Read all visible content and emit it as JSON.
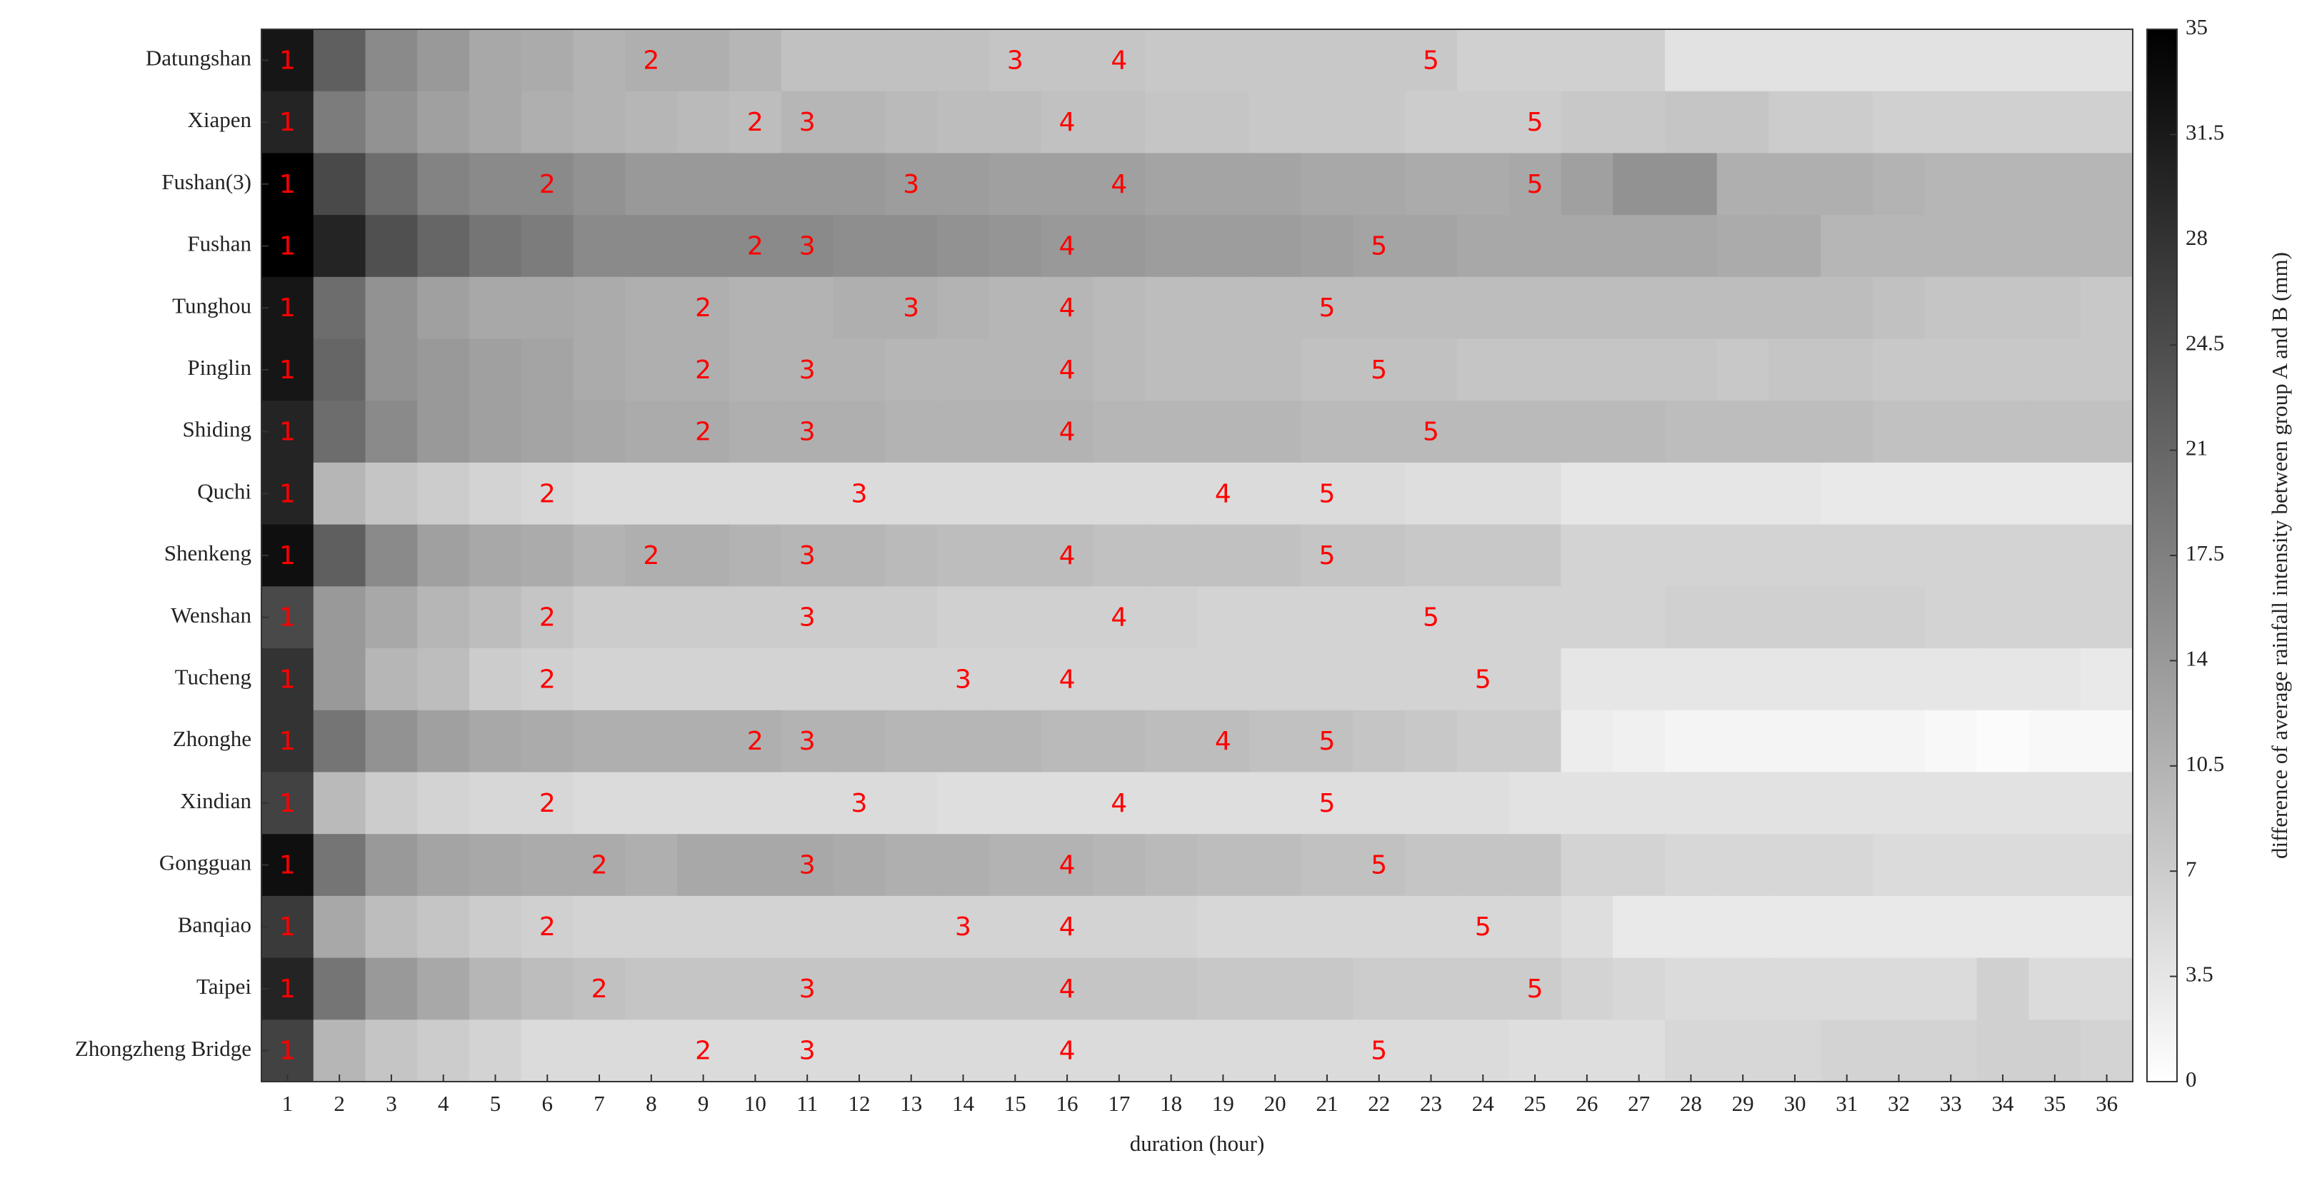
{
  "chart_data": {
    "type": "heatmap",
    "x_label": "duration (hour)",
    "colorbar_label": "difference of average rainfall intensity between group A and B (mm)",
    "x": [
      1,
      2,
      3,
      4,
      5,
      6,
      7,
      8,
      9,
      10,
      11,
      12,
      13,
      14,
      15,
      16,
      17,
      18,
      19,
      20,
      21,
      22,
      23,
      24,
      25,
      26,
      27,
      28,
      29,
      30,
      31,
      32,
      33,
      34,
      35,
      36
    ],
    "zlim": [
      0,
      35
    ],
    "zticks": [
      0,
      3.5,
      7,
      10.5,
      14,
      17.5,
      21,
      24.5,
      28,
      31.5,
      35
    ],
    "colormap": [
      "#ffffff",
      "#000000"
    ],
    "annotation_color": "#ff0000",
    "rows": [
      {
        "name": "Datungshan",
        "values": [
          32,
          22,
          16,
          14,
          12,
          11.5,
          10.5,
          11,
          11,
          10,
          8.5,
          8.5,
          8.5,
          8.5,
          8,
          8,
          8,
          7.5,
          7.5,
          7.5,
          7.5,
          7.5,
          7.5,
          6.5,
          6.5,
          6.5,
          6.5,
          4,
          4,
          4,
          4,
          4,
          4,
          4,
          4,
          4
        ],
        "labels": [
          {
            "x": 1,
            "text": "1"
          },
          {
            "x": 8,
            "text": "2"
          },
          {
            "x": 15,
            "text": "3"
          },
          {
            "x": 17,
            "text": "4"
          },
          {
            "x": 23,
            "text": "5"
          }
        ]
      },
      {
        "name": "Xiapen",
        "values": [
          30,
          18,
          15,
          13,
          12,
          11,
          10.5,
          10,
          9.5,
          9,
          10,
          10,
          9.5,
          9,
          9,
          8.5,
          8.5,
          8,
          8,
          7.5,
          7.5,
          7.5,
          7,
          7,
          7,
          7.5,
          7.5,
          8,
          8,
          7,
          7,
          6.5,
          6.5,
          6.5,
          6.5,
          6.5
        ],
        "labels": [
          {
            "x": 1,
            "text": "1"
          },
          {
            "x": 10,
            "text": "2"
          },
          {
            "x": 11,
            "text": "3"
          },
          {
            "x": 16,
            "text": "4"
          },
          {
            "x": 25,
            "text": "5"
          }
        ]
      },
      {
        "name": "Fushan(3)",
        "values": [
          35,
          25,
          20,
          17,
          16,
          16,
          15,
          14,
          14,
          14,
          14,
          14,
          13.5,
          13.5,
          13,
          13,
          13,
          12.5,
          12.5,
          12.5,
          12,
          12,
          11.5,
          11.5,
          12,
          13,
          15,
          15,
          11,
          11,
          11,
          10.5,
          10,
          10,
          10,
          10
        ],
        "labels": [
          {
            "x": 1,
            "text": "1"
          },
          {
            "x": 6,
            "text": "2"
          },
          {
            "x": 13,
            "text": "3"
          },
          {
            "x": 17,
            "text": "4"
          },
          {
            "x": 25,
            "text": "5"
          }
        ]
      },
      {
        "name": "Fushan",
        "values": [
          35,
          30,
          24,
          21,
          19,
          18,
          16,
          16,
          16,
          16,
          16,
          15.5,
          15.5,
          15,
          14.5,
          14,
          14,
          13.5,
          13.5,
          13.5,
          13,
          12.5,
          12.5,
          12,
          12,
          12,
          12,
          12,
          11.5,
          11.5,
          10,
          10,
          10,
          10,
          10,
          10
        ],
        "labels": [
          {
            "x": 1,
            "text": "1"
          },
          {
            "x": 10,
            "text": "2"
          },
          {
            "x": 11,
            "text": "3"
          },
          {
            "x": 16,
            "text": "4"
          },
          {
            "x": 22,
            "text": "5"
          }
        ]
      },
      {
        "name": "Tunghou",
        "values": [
          32,
          20,
          15,
          13,
          12,
          12,
          11.5,
          11,
          11,
          10.5,
          10.5,
          11,
          11,
          10.5,
          10,
          10,
          9.5,
          9,
          9,
          9,
          9,
          9,
          9,
          9,
          9,
          9,
          9,
          9,
          9,
          9,
          9,
          8.5,
          8,
          8,
          8,
          7.5
        ],
        "labels": [
          {
            "x": 1,
            "text": "1"
          },
          {
            "x": 9,
            "text": "2"
          },
          {
            "x": 13,
            "text": "3"
          },
          {
            "x": 16,
            "text": "4"
          },
          {
            "x": 21,
            "text": "5"
          }
        ]
      },
      {
        "name": "Pinglin",
        "values": [
          32,
          21,
          15,
          14,
          13,
          12.5,
          11.5,
          11,
          11,
          10.5,
          10.5,
          10.5,
          10,
          10,
          10,
          10,
          9.5,
          9,
          9,
          9,
          8.5,
          8.5,
          8.5,
          8,
          8,
          8,
          8,
          8,
          7.5,
          8,
          8,
          7.5,
          7.5,
          7.5,
          7.5,
          7.5
        ],
        "labels": [
          {
            "x": 1,
            "text": "1"
          },
          {
            "x": 9,
            "text": "2"
          },
          {
            "x": 11,
            "text": "3"
          },
          {
            "x": 16,
            "text": "4"
          },
          {
            "x": 22,
            "text": "5"
          }
        ]
      },
      {
        "name": "Shiding",
        "values": [
          30,
          20,
          16,
          14,
          13,
          12.5,
          12,
          11.5,
          11.5,
          11,
          11,
          11,
          10.5,
          10.5,
          10.5,
          10.5,
          10,
          10,
          10,
          10,
          9.5,
          9.5,
          9.5,
          9.5,
          9.5,
          9.5,
          9.5,
          9,
          9,
          9,
          9,
          8.5,
          8.5,
          8.5,
          8.5,
          8.5
        ],
        "labels": [
          {
            "x": 1,
            "text": "1"
          },
          {
            "x": 9,
            "text": "2"
          },
          {
            "x": 11,
            "text": "3"
          },
          {
            "x": 16,
            "text": "4"
          },
          {
            "x": 23,
            "text": "5"
          }
        ]
      },
      {
        "name": "Quchi",
        "values": [
          30,
          10,
          8,
          7,
          6,
          5.5,
          5,
          5,
          5,
          5,
          5,
          5,
          5,
          5,
          5,
          5,
          5,
          5,
          5,
          5,
          5,
          5,
          4.5,
          4.5,
          4.5,
          3.5,
          3.5,
          3.5,
          3.5,
          3.5,
          3,
          3,
          3,
          3,
          3,
          3
        ],
        "labels": [
          {
            "x": 1,
            "text": "1"
          },
          {
            "x": 6,
            "text": "2"
          },
          {
            "x": 12,
            "text": "3"
          },
          {
            "x": 19,
            "text": "4"
          },
          {
            "x": 21,
            "text": "5"
          }
        ]
      },
      {
        "name": "Shenkeng",
        "values": [
          33,
          22,
          16,
          13,
          12,
          11.5,
          10.5,
          11,
          11,
          10.5,
          10,
          10,
          9.5,
          9,
          9,
          9,
          8.5,
          8.5,
          8.5,
          8.5,
          8,
          8,
          7.5,
          7.5,
          7.5,
          6,
          6,
          6,
          6,
          6,
          6,
          6,
          6,
          6,
          6,
          6
        ],
        "labels": [
          {
            "x": 1,
            "text": "1"
          },
          {
            "x": 8,
            "text": "2"
          },
          {
            "x": 11,
            "text": "3"
          },
          {
            "x": 16,
            "text": "4"
          },
          {
            "x": 21,
            "text": "5"
          }
        ]
      },
      {
        "name": "Wenshan",
        "values": [
          25,
          14,
          12,
          10,
          9,
          8,
          7,
          7,
          7,
          7,
          7,
          7,
          7,
          6.5,
          6.5,
          6.5,
          6.5,
          6.5,
          6,
          6,
          6,
          6,
          6,
          6,
          6,
          6,
          6,
          6.5,
          6.5,
          6.5,
          6.5,
          6.5,
          6,
          6,
          6,
          6
        ],
        "labels": [
          {
            "x": 1,
            "text": "1"
          },
          {
            "x": 6,
            "text": "2"
          },
          {
            "x": 11,
            "text": "3"
          },
          {
            "x": 17,
            "text": "4"
          },
          {
            "x": 23,
            "text": "5"
          }
        ]
      },
      {
        "name": "Tucheng",
        "values": [
          28,
          14,
          10,
          9,
          7,
          6.5,
          6,
          6,
          6,
          6,
          6,
          6,
          6,
          6,
          6,
          6,
          6,
          6,
          6,
          6,
          6,
          6,
          6,
          6,
          6,
          3.5,
          3.5,
          3.5,
          3.5,
          3.5,
          3.5,
          3.5,
          3.5,
          3.5,
          3.5,
          3
        ],
        "labels": [
          {
            "x": 1,
            "text": "1"
          },
          {
            "x": 6,
            "text": "2"
          },
          {
            "x": 14,
            "text": "3"
          },
          {
            "x": 16,
            "text": "4"
          },
          {
            "x": 24,
            "text": "5"
          }
        ]
      },
      {
        "name": "Zhonghe",
        "values": [
          28,
          19,
          15,
          13,
          12,
          11.5,
          11,
          11,
          11,
          11,
          10.5,
          10.5,
          10,
          10,
          10,
          9.5,
          9.5,
          9,
          9,
          8.5,
          8.5,
          8,
          7.5,
          7,
          7,
          2.5,
          2,
          1.5,
          1.5,
          1.5,
          1.5,
          1.5,
          1,
          0.5,
          1,
          1
        ],
        "labels": [
          {
            "x": 1,
            "text": "1"
          },
          {
            "x": 10,
            "text": "2"
          },
          {
            "x": 11,
            "text": "3"
          },
          {
            "x": 19,
            "text": "4"
          },
          {
            "x": 21,
            "text": "5"
          }
        ]
      },
      {
        "name": "Xindian",
        "values": [
          26,
          9.5,
          7,
          6,
          5.5,
          5.5,
          5,
          5,
          5,
          5,
          5,
          5,
          5,
          4.5,
          4.5,
          4.5,
          4.5,
          4.5,
          4.5,
          4.5,
          4.5,
          4.5,
          4.5,
          4.5,
          4,
          4,
          4,
          4,
          4,
          4,
          4,
          4,
          4,
          4,
          4,
          4
        ],
        "labels": [
          {
            "x": 1,
            "text": "1"
          },
          {
            "x": 6,
            "text": "2"
          },
          {
            "x": 12,
            "text": "3"
          },
          {
            "x": 17,
            "text": "4"
          },
          {
            "x": 21,
            "text": "5"
          }
        ]
      },
      {
        "name": "Gongguan",
        "values": [
          33,
          19,
          14,
          12.5,
          12,
          11.5,
          11.5,
          11,
          12,
          12,
          12,
          11.5,
          11,
          11,
          10.5,
          10.5,
          10,
          9.5,
          9,
          9,
          8.5,
          8.5,
          8,
          8,
          8,
          6,
          6,
          5.5,
          5.5,
          5.5,
          5.5,
          5,
          5,
          5,
          5,
          5
        ],
        "labels": [
          {
            "x": 1,
            "text": "1"
          },
          {
            "x": 7,
            "text": "2"
          },
          {
            "x": 11,
            "text": "3"
          },
          {
            "x": 16,
            "text": "4"
          },
          {
            "x": 22,
            "text": "5"
          }
        ]
      },
      {
        "name": "Banqiao",
        "values": [
          27,
          12,
          9,
          8,
          7,
          6.5,
          6,
          6,
          6,
          6,
          6,
          6,
          6,
          6,
          6,
          6,
          6,
          6,
          5.5,
          5.5,
          5.5,
          5.5,
          5.5,
          5.5,
          5.5,
          4.5,
          3,
          3,
          3,
          3,
          3,
          3,
          3,
          3,
          3,
          3
        ],
        "labels": [
          {
            "x": 1,
            "text": "1"
          },
          {
            "x": 6,
            "text": "2"
          },
          {
            "x": 14,
            "text": "3"
          },
          {
            "x": 16,
            "text": "4"
          },
          {
            "x": 24,
            "text": "5"
          }
        ]
      },
      {
        "name": "Taipei",
        "values": [
          30,
          19,
          14,
          12,
          10,
          9,
          8.5,
          8,
          8,
          8,
          8,
          8,
          8,
          8,
          8,
          8,
          8,
          8,
          7.5,
          7.5,
          7.5,
          7,
          7,
          7,
          7,
          6,
          5.5,
          5,
          5,
          5,
          5,
          5,
          5,
          6.5,
          5,
          5
        ],
        "labels": [
          {
            "x": 1,
            "text": "1"
          },
          {
            "x": 7,
            "text": "2"
          },
          {
            "x": 11,
            "text": "3"
          },
          {
            "x": 16,
            "text": "4"
          },
          {
            "x": 25,
            "text": "5"
          }
        ]
      },
      {
        "name": "Zhongzheng Bridge",
        "values": [
          26,
          10,
          8,
          7,
          6,
          5,
          5,
          5,
          5,
          5,
          5,
          5,
          5,
          5,
          5,
          5,
          5,
          5,
          5,
          5,
          5,
          5,
          5,
          5,
          4.5,
          4.5,
          4.5,
          5.5,
          5.5,
          5.5,
          6,
          6,
          6,
          6.5,
          6.5,
          6
        ],
        "labels": [
          {
            "x": 1,
            "text": "1"
          },
          {
            "x": 9,
            "text": "2"
          },
          {
            "x": 11,
            "text": "3"
          },
          {
            "x": 16,
            "text": "4"
          },
          {
            "x": 22,
            "text": "5"
          }
        ]
      }
    ]
  }
}
